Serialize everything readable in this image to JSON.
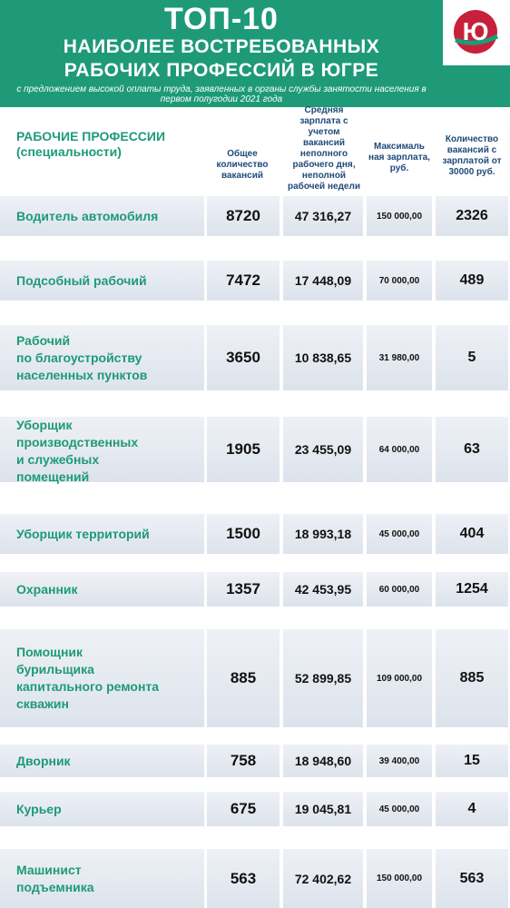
{
  "header": {
    "title": "ТОП-10",
    "subtitle_line1": "НАИБОЛЕЕ ВОСТРЕБОВАННЫХ",
    "subtitle_line2": "РАБОЧИХ ПРОФЕССИЙ В ЮГРЕ",
    "note": "с предложением высокой оплаты труда, заявленных в органы службы занятости населения в первом полугодии 2021 года",
    "logo_icon": "yugra-logo-icon",
    "accent_color": "#1e9a78"
  },
  "columns": {
    "profession": "РАБОЧИЕ ПРОФЕССИИ (специальности)",
    "total": "Общее количество вакансий",
    "avg": "Средняя зарплата с учетом вакансий неполного рабочего дня, неполной рабочей недели",
    "max": "Максималь ная зарплата, руб.",
    "count30k": "Количество вакансий с зарплатой от 30000 руб."
  },
  "rows": [
    {
      "profession": "Водитель автомобиля",
      "total": "8720",
      "avg": "47 316,27",
      "max": "150 000,00",
      "count30k": "2326"
    },
    {
      "profession": "Подсобный рабочий",
      "total": "7472",
      "avg": "17 448,09",
      "max": "70 000,00",
      "count30k": "489"
    },
    {
      "profession": "Рабочий\nпо благоустройству\nнаселенных пунктов",
      "total": "3650",
      "avg": "10 838,65",
      "max": "31 980,00",
      "count30k": "5"
    },
    {
      "profession": "Уборщик\nпроизводственных\nи служебных\nпомещений",
      "total": "1905",
      "avg": "23 455,09",
      "max": "64 000,00",
      "count30k": "63"
    },
    {
      "profession": "Уборщик территорий",
      "total": "1500",
      "avg": "18 993,18",
      "max": "45 000,00",
      "count30k": "404"
    },
    {
      "profession": "Охранник",
      "total": "1357",
      "avg": "42 453,95",
      "max": "60 000,00",
      "count30k": "1254"
    },
    {
      "profession": "Помощник\nбурильщика\nкапитального ремонта\nскважин",
      "total": "885",
      "avg": "52 899,85",
      "max": "109 000,00",
      "count30k": "885"
    },
    {
      "profession": "Дворник",
      "total": "758",
      "avg": "18 948,60",
      "max": "39 400,00",
      "count30k": "15"
    },
    {
      "profession": "Курьер",
      "total": "675",
      "avg": "19 045,81",
      "max": "45 000,00",
      "count30k": "4"
    },
    {
      "profession": "Машинист\nподъемника",
      "total": "563",
      "avg": "72 402,62",
      "max": "150 000,00",
      "count30k": "563"
    }
  ]
}
